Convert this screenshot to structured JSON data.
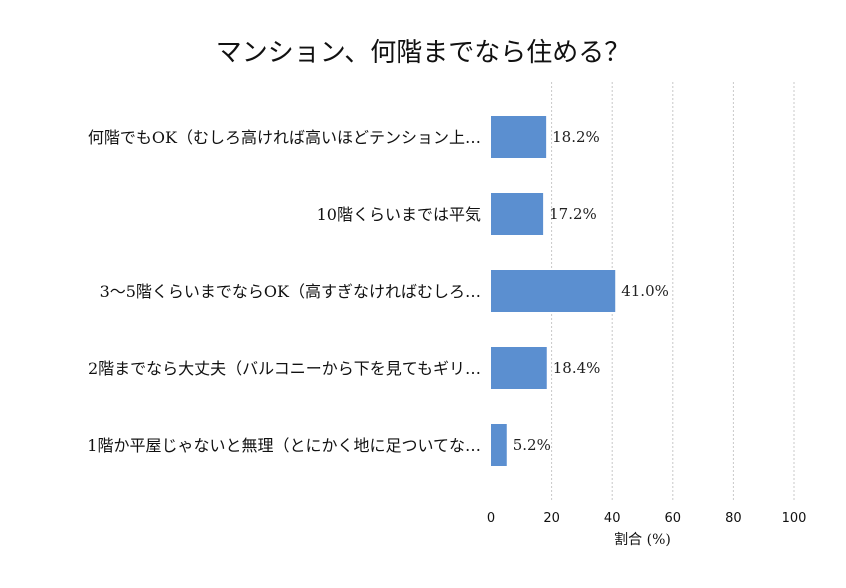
{
  "chart_data": {
    "type": "bar",
    "orientation": "horizontal",
    "title": "マンション、何階までなら住める？",
    "xlabel": "割合 (%)",
    "ylabel": "",
    "xlim": [
      0,
      100
    ],
    "xticks": [
      0,
      20,
      40,
      60,
      80,
      100
    ],
    "grid": true,
    "categories": [
      "何階でもOK（むしろ高ければ高いほどテンション上…",
      "10階くらいまでは平気",
      "3〜5階くらいまでならOK（高すぎなければむしろ…",
      "2階までなら大丈夫（バルコニーから下を見てもギリ…",
      "1階か平屋じゃないと無理（とにかく地に足ついてな…"
    ],
    "values": [
      18.2,
      17.2,
      41.0,
      18.4,
      5.2
    ],
    "data_labels": [
      "18.2%",
      "17.2%",
      "41.0%",
      "18.4%",
      "5.2%"
    ],
    "bar_color": "#5b8fd0",
    "grid_color": "#c8c8c8"
  }
}
